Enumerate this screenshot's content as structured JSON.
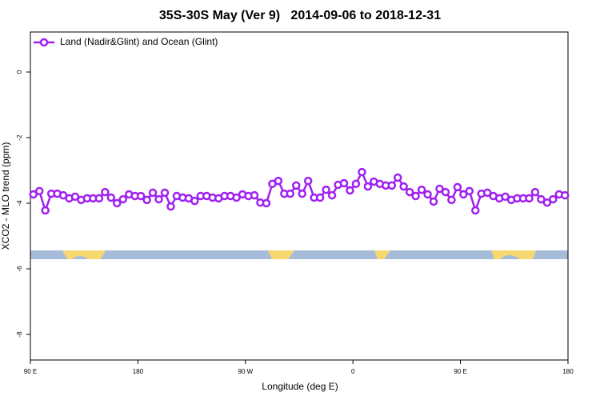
{
  "chart_data": {
    "type": "line",
    "title": "35S-30S May (Ver 9)   2014-09-06 to 2018-12-31",
    "xlabel": "Longitude (deg E)",
    "ylabel": "XCO2 - MLO trend (ppm)",
    "xlim": [
      90,
      540
    ],
    "xticks": [
      {
        "value": 90,
        "label": "90 E"
      },
      {
        "value": 180,
        "label": "180"
      },
      {
        "value": 270,
        "label": "90 W"
      },
      {
        "value": 360,
        "label": "0"
      },
      {
        "value": 450,
        "label": "90 E"
      },
      {
        "value": 540,
        "label": "180"
      }
    ],
    "ylim": [
      -8.78,
      1.22
    ],
    "yticks": [
      0,
      -2,
      -4,
      -6,
      -8
    ],
    "legend": "upper left",
    "x": [
      92.5,
      97.5,
      102.5,
      107.5,
      112.5,
      117.5,
      122.5,
      127.5,
      132.5,
      137.5,
      142.5,
      147.5,
      152.5,
      157.5,
      162.5,
      167.5,
      172.5,
      177.5,
      182.5,
      187.5,
      192.5,
      197.5,
      202.5,
      207.5,
      212.5,
      217.5,
      222.5,
      227.5,
      232.5,
      237.5,
      242.5,
      247.5,
      252.5,
      257.5,
      262.5,
      267.5,
      272.5,
      277.5,
      282.5,
      287.5,
      292.5,
      297.5,
      302.5,
      307.5,
      312.5,
      317.5,
      322.5,
      327.5,
      332.5,
      337.5,
      342.5,
      347.5,
      352.5,
      357.5,
      362.5,
      367.5,
      372.5,
      377.5,
      382.5,
      387.5,
      392.5,
      397.5,
      402.5,
      407.5,
      412.5,
      417.5,
      422.5,
      427.5,
      432.5,
      437.5,
      442.5,
      447.5,
      452.5,
      457.5,
      462.5,
      467.5,
      472.5,
      477.5,
      482.5,
      487.5,
      492.5,
      497.5,
      502.5,
      507.5,
      512.5,
      517.5,
      522.5,
      527.5,
      532.5,
      537.5
    ],
    "series": [
      {
        "name": "Land (Nadir&Glint) and Ocean (Glint)",
        "color": "#a020f0",
        "values": [
          -3.73,
          -3.63,
          -4.22,
          -3.71,
          -3.71,
          -3.76,
          -3.85,
          -3.8,
          -3.9,
          -3.85,
          -3.85,
          -3.85,
          -3.66,
          -3.83,
          -4.0,
          -3.88,
          -3.73,
          -3.78,
          -3.78,
          -3.9,
          -3.68,
          -3.88,
          -3.68,
          -4.1,
          -3.78,
          -3.83,
          -3.85,
          -3.93,
          -3.78,
          -3.78,
          -3.83,
          -3.85,
          -3.78,
          -3.78,
          -3.83,
          -3.73,
          -3.78,
          -3.76,
          -3.98,
          -4.0,
          -3.41,
          -3.32,
          -3.71,
          -3.71,
          -3.46,
          -3.71,
          -3.32,
          -3.83,
          -3.83,
          -3.59,
          -3.76,
          -3.44,
          -3.39,
          -3.61,
          -3.41,
          -3.05,
          -3.49,
          -3.34,
          -3.41,
          -3.46,
          -3.46,
          -3.22,
          -3.49,
          -3.66,
          -3.78,
          -3.59,
          -3.73,
          -3.95,
          -3.56,
          -3.66,
          -3.9,
          -3.51,
          -3.73,
          -3.63,
          -4.22,
          -3.71,
          -3.68,
          -3.78,
          -3.85,
          -3.8,
          -3.9,
          -3.85,
          -3.85,
          -3.85,
          -3.66,
          -3.88,
          -3.98,
          -3.88,
          -3.73,
          -3.76
        ]
      }
    ]
  }
}
